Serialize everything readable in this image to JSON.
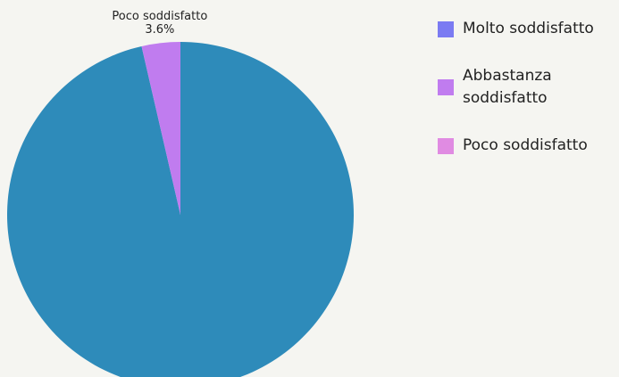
{
  "chart_data": {
    "type": "pie",
    "categories": [
      "Molto soddisfatto",
      "Abbastanza soddisfatto",
      "Poco soddisfatto"
    ],
    "values": [
      96.4,
      0,
      3.6
    ],
    "value_labels": [
      null,
      null,
      "3.6%"
    ],
    "colors": [
      "#7b7bf2",
      "#c07cef",
      "#e08be2"
    ],
    "slice_colors": [
      "#2e8bba",
      "#c07cef",
      "#c07cef"
    ],
    "legend": "top-right"
  }
}
